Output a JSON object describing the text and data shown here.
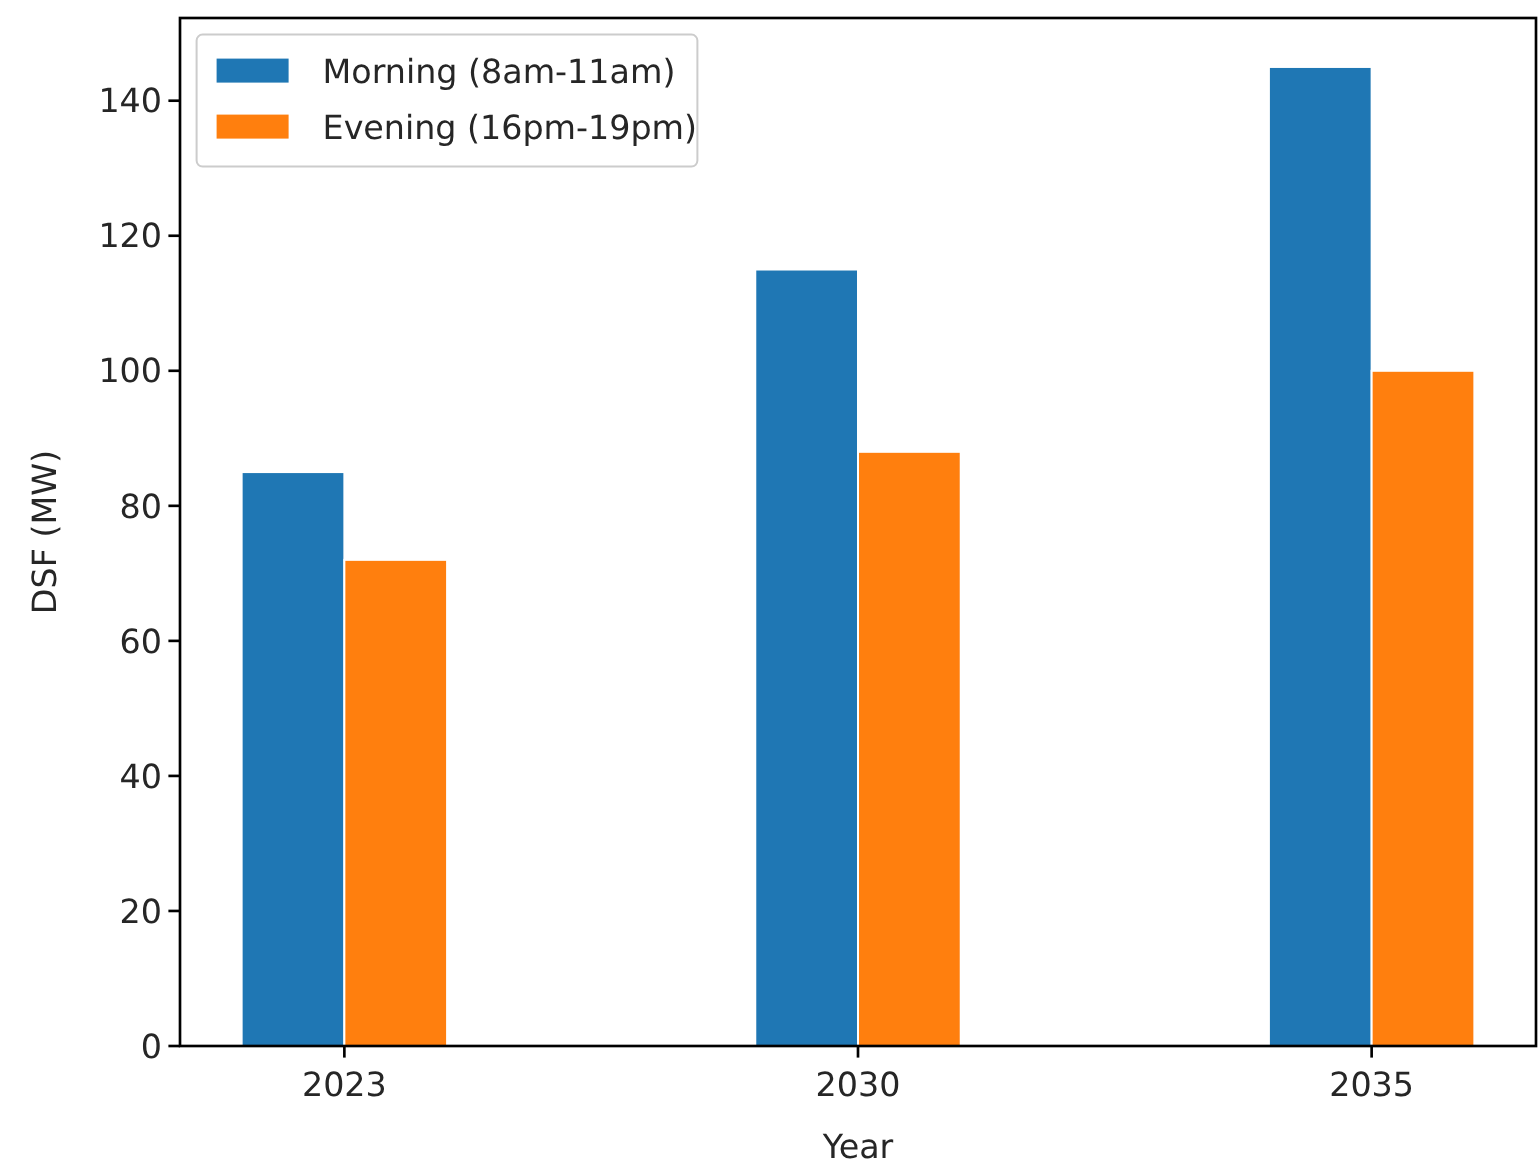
{
  "chart_data": {
    "type": "bar",
    "xlabel": "Year",
    "ylabel": "DSF (MW)",
    "categories": [
      "2023",
      "2030",
      "2035"
    ],
    "series": [
      {
        "name": "Morning (8am-11am)",
        "color": "#1f77b4",
        "values": [
          85,
          115,
          145
        ]
      },
      {
        "name": "Evening (16pm-19pm)",
        "color": "#ff7f0e",
        "values": [
          72,
          88,
          100
        ]
      }
    ],
    "ylim": [
      0,
      152.25
    ],
    "yticks": [
      0,
      20,
      40,
      60,
      80,
      100,
      120,
      140
    ],
    "legend": "top left"
  }
}
